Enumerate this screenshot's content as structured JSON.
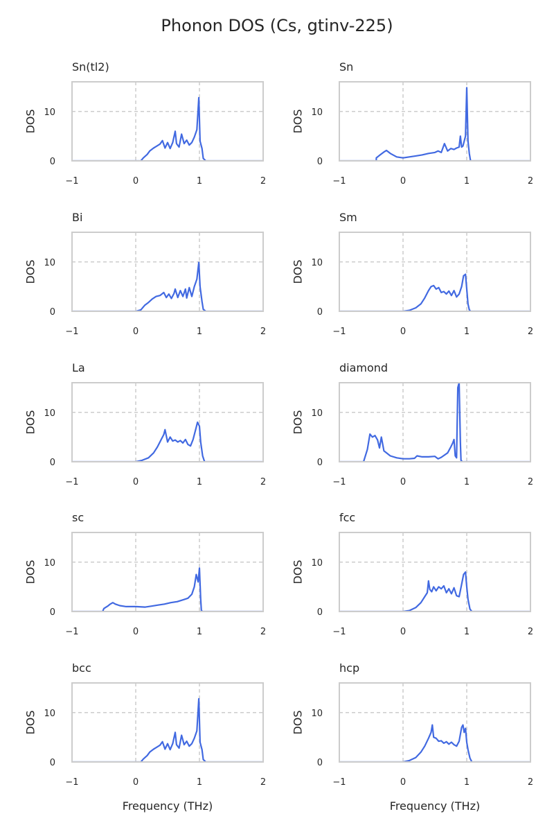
{
  "chart_data": {
    "type": "line",
    "title": "Phonon DOS (Cs, gtinv-225)",
    "x_range": [
      -1,
      2
    ],
    "y_range": [
      0,
      16
    ],
    "x_ticks": [
      -1,
      0,
      1,
      2
    ],
    "x_tick_labels": [
      "−1",
      "0",
      "1",
      "2"
    ],
    "y_ticks": [
      0,
      10
    ],
    "y_tick_labels": [
      "0",
      "10"
    ],
    "y_label": "DOS",
    "x_label": "Frequency (THz)",
    "grid": {
      "vertical_lines_at_x": [
        0,
        1
      ],
      "horizontal_line_at_y": 10,
      "style": "dashed"
    },
    "line_color": "#4169e1",
    "subplots": [
      {
        "title": "Sn(tl2)",
        "x": [
          -1.0,
          0.0,
          0.08,
          0.12,
          0.18,
          0.22,
          0.28,
          0.32,
          0.38,
          0.42,
          0.46,
          0.5,
          0.54,
          0.58,
          0.62,
          0.64,
          0.68,
          0.72,
          0.76,
          0.8,
          0.84,
          0.88,
          0.92,
          0.96,
          0.99,
          1.01,
          1.04,
          1.06,
          1.1,
          2.0
        ],
        "y": [
          0.0,
          0.0,
          0.0,
          0.6,
          1.3,
          2.0,
          2.6,
          2.9,
          3.4,
          4.1,
          2.6,
          3.7,
          2.5,
          3.7,
          6.0,
          3.5,
          2.8,
          5.4,
          3.5,
          4.2,
          3.2,
          3.7,
          4.8,
          6.3,
          12.8,
          4.0,
          2.5,
          0.5,
          0.0,
          0.0
        ]
      },
      {
        "title": "Sn",
        "x": [
          -1.0,
          -0.42,
          -0.42,
          -0.36,
          -0.3,
          -0.26,
          -0.2,
          -0.1,
          0.0,
          0.1,
          0.2,
          0.3,
          0.4,
          0.5,
          0.55,
          0.6,
          0.65,
          0.7,
          0.75,
          0.8,
          0.84,
          0.88,
          0.9,
          0.92,
          0.94,
          0.98,
          1.0,
          1.02,
          1.04,
          1.06,
          1.1,
          2.0
        ],
        "y": [
          0.0,
          0.0,
          0.6,
          1.2,
          1.8,
          2.1,
          1.5,
          0.8,
          0.6,
          0.8,
          1.0,
          1.2,
          1.5,
          1.7,
          2.0,
          1.7,
          3.5,
          2.0,
          2.5,
          2.3,
          2.6,
          2.8,
          5.0,
          2.8,
          3.0,
          5.0,
          14.8,
          4.0,
          1.5,
          0.0,
          0.0,
          0.0
        ]
      },
      {
        "title": "Bi",
        "x": [
          -1.0,
          0.0,
          0.08,
          0.14,
          0.2,
          0.26,
          0.32,
          0.38,
          0.44,
          0.48,
          0.52,
          0.56,
          0.6,
          0.62,
          0.66,
          0.7,
          0.74,
          0.78,
          0.8,
          0.84,
          0.88,
          0.92,
          0.96,
          0.99,
          1.01,
          1.04,
          1.06,
          1.1,
          2.0
        ],
        "y": [
          0.0,
          0.0,
          0.3,
          1.2,
          1.8,
          2.5,
          3.0,
          3.2,
          3.8,
          2.8,
          3.5,
          2.6,
          3.6,
          4.5,
          2.8,
          4.2,
          3.0,
          4.5,
          2.7,
          4.8,
          3.0,
          5.0,
          6.5,
          9.9,
          5.0,
          2.0,
          0.4,
          0.0,
          0.0
        ]
      },
      {
        "title": "Sm",
        "x": [
          -1.0,
          0.0,
          0.1,
          0.2,
          0.28,
          0.34,
          0.4,
          0.44,
          0.48,
          0.52,
          0.56,
          0.6,
          0.64,
          0.68,
          0.72,
          0.76,
          0.8,
          0.84,
          0.88,
          0.92,
          0.95,
          0.98,
          1.0,
          1.02,
          1.04,
          1.06,
          2.0
        ],
        "y": [
          0.0,
          0.0,
          0.2,
          0.7,
          1.5,
          2.7,
          4.2,
          5.0,
          5.2,
          4.5,
          4.8,
          3.8,
          4.0,
          3.5,
          4.1,
          3.2,
          4.2,
          2.9,
          3.5,
          5.0,
          7.2,
          7.5,
          4.5,
          1.5,
          0.3,
          0.0,
          0.0
        ]
      },
      {
        "title": "La",
        "x": [
          -1.0,
          0.0,
          0.1,
          0.2,
          0.28,
          0.34,
          0.4,
          0.44,
          0.46,
          0.5,
          0.54,
          0.58,
          0.62,
          0.66,
          0.7,
          0.74,
          0.78,
          0.82,
          0.86,
          0.9,
          0.94,
          0.97,
          1.0,
          1.02,
          1.05,
          1.08,
          2.0
        ],
        "y": [
          0.0,
          0.0,
          0.3,
          0.8,
          1.8,
          3.0,
          4.5,
          5.5,
          6.5,
          4.0,
          5.0,
          4.2,
          4.4,
          4.0,
          4.3,
          3.8,
          4.5,
          3.5,
          3.2,
          4.5,
          6.5,
          8.0,
          7.2,
          4.0,
          1.2,
          0.0,
          0.0
        ]
      },
      {
        "title": "diamond",
        "x": [
          -1.0,
          -0.65,
          -0.62,
          -0.56,
          -0.52,
          -0.48,
          -0.44,
          -0.4,
          -0.37,
          -0.34,
          -0.3,
          -0.2,
          -0.1,
          0.0,
          0.1,
          0.18,
          0.22,
          0.3,
          0.4,
          0.5,
          0.55,
          0.6,
          0.7,
          0.75,
          0.78,
          0.8,
          0.82,
          0.84,
          0.86,
          0.87,
          0.88,
          0.9,
          0.91,
          0.93,
          1.0,
          2.0
        ],
        "y": [
          0.0,
          0.0,
          0.0,
          2.5,
          5.6,
          5.0,
          5.3,
          4.4,
          2.8,
          5.0,
          2.2,
          1.2,
          0.8,
          0.6,
          0.6,
          0.7,
          1.2,
          1.0,
          1.0,
          1.1,
          0.6,
          0.9,
          1.8,
          3.0,
          3.8,
          4.5,
          1.2,
          0.8,
          15.0,
          15.5,
          16.0,
          4.0,
          0.3,
          0.0,
          0.0,
          0.0
        ]
      },
      {
        "title": "sc",
        "x": [
          -1.0,
          -0.52,
          -0.5,
          -0.44,
          -0.4,
          -0.36,
          -0.32,
          -0.25,
          -0.15,
          0.0,
          0.15,
          0.25,
          0.35,
          0.45,
          0.55,
          0.65,
          0.75,
          0.82,
          0.88,
          0.92,
          0.95,
          0.98,
          1.0,
          1.02,
          1.03,
          1.05,
          1.1,
          2.0
        ],
        "y": [
          0.0,
          0.0,
          0.6,
          1.1,
          1.5,
          1.8,
          1.5,
          1.2,
          1.0,
          1.0,
          0.9,
          1.1,
          1.3,
          1.5,
          1.8,
          2.0,
          2.4,
          2.7,
          3.5,
          5.0,
          7.5,
          6.0,
          8.8,
          2.5,
          0.2,
          0.0,
          0.0,
          0.0
        ]
      },
      {
        "title": "fcc",
        "x": [
          -1.0,
          0.0,
          0.1,
          0.2,
          0.28,
          0.34,
          0.38,
          0.4,
          0.42,
          0.45,
          0.48,
          0.52,
          0.56,
          0.6,
          0.64,
          0.68,
          0.72,
          0.76,
          0.8,
          0.84,
          0.88,
          0.92,
          0.95,
          0.98,
          1.0,
          1.02,
          1.05,
          1.08,
          2.0
        ],
        "y": [
          0.0,
          0.0,
          0.2,
          0.8,
          1.8,
          3.0,
          3.8,
          6.2,
          4.5,
          4.0,
          5.0,
          4.2,
          5.0,
          4.6,
          5.2,
          3.8,
          4.6,
          3.6,
          4.8,
          3.2,
          3.0,
          5.5,
          7.5,
          8.0,
          5.0,
          2.5,
          0.5,
          0.0,
          0.0
        ]
      },
      {
        "title": "bcc",
        "x": [
          -1.0,
          0.0,
          0.08,
          0.12,
          0.18,
          0.22,
          0.28,
          0.32,
          0.38,
          0.42,
          0.46,
          0.5,
          0.54,
          0.58,
          0.62,
          0.64,
          0.68,
          0.72,
          0.76,
          0.8,
          0.84,
          0.88,
          0.92,
          0.96,
          0.99,
          1.01,
          1.04,
          1.06,
          1.1,
          2.0
        ],
        "y": [
          0.0,
          0.0,
          0.0,
          0.6,
          1.3,
          2.0,
          2.6,
          2.9,
          3.4,
          4.1,
          2.6,
          3.7,
          2.5,
          3.7,
          6.0,
          3.5,
          2.8,
          5.4,
          3.5,
          4.2,
          3.2,
          3.7,
          4.8,
          6.3,
          12.8,
          4.0,
          2.5,
          0.5,
          0.0,
          0.0
        ]
      },
      {
        "title": "hcp",
        "x": [
          -1.0,
          0.0,
          0.1,
          0.2,
          0.28,
          0.34,
          0.4,
          0.44,
          0.46,
          0.48,
          0.52,
          0.56,
          0.6,
          0.64,
          0.68,
          0.72,
          0.76,
          0.8,
          0.84,
          0.88,
          0.92,
          0.94,
          0.96,
          0.98,
          1.0,
          1.02,
          1.05,
          1.08,
          2.0
        ],
        "y": [
          0.0,
          0.0,
          0.3,
          0.9,
          2.0,
          3.2,
          4.8,
          6.0,
          7.5,
          5.0,
          4.8,
          4.2,
          4.3,
          3.8,
          4.1,
          3.6,
          4.0,
          3.5,
          3.2,
          4.2,
          7.0,
          7.5,
          6.0,
          6.8,
          4.0,
          2.5,
          0.8,
          0.0,
          0.0
        ]
      }
    ]
  }
}
